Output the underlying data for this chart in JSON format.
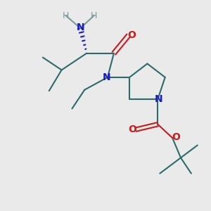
{
  "bg_color": "#eaeaea",
  "bond_color": "#2d6b6b",
  "bond_width": 1.5,
  "N_color": "#1a1acc",
  "O_color": "#cc1a1a",
  "H_color": "#7a9a9a",
  "figsize": [
    3.0,
    3.0
  ],
  "dpi": 100,
  "xlim": [
    0,
    10
  ],
  "ylim": [
    0,
    10
  ]
}
